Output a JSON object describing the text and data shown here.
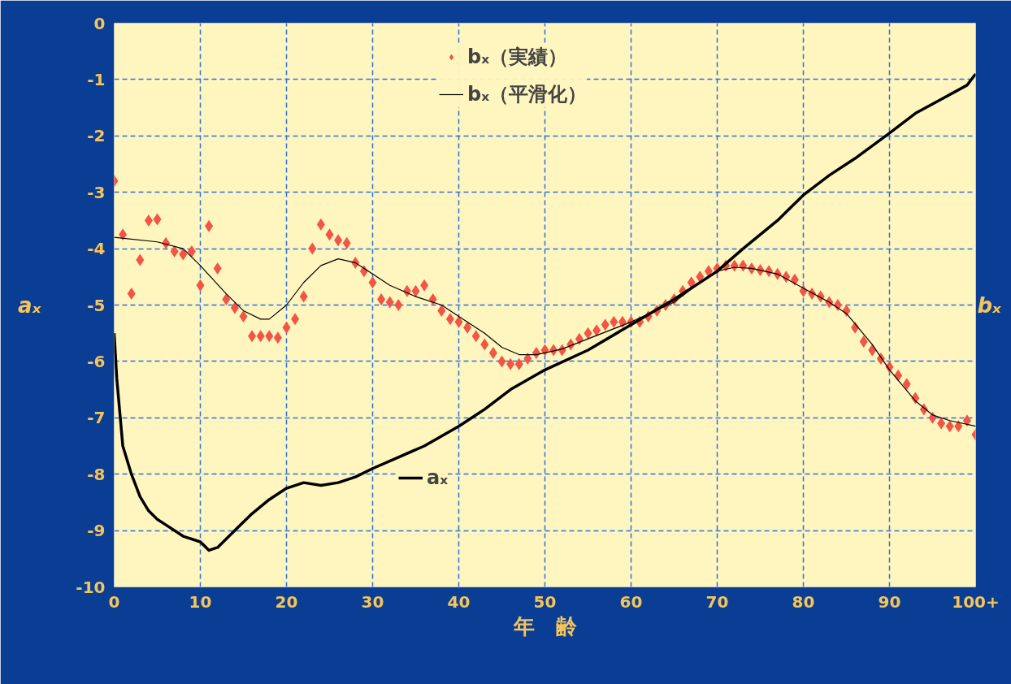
{
  "chart_data": {
    "type": "line",
    "xlabel": "年　齢",
    "ylabel": "aₓ",
    "y2label": "bₓ",
    "xlim": [
      0,
      100
    ],
    "xticks": [
      0,
      10,
      20,
      30,
      40,
      50,
      60,
      70,
      80,
      90,
      {
        "value": 100,
        "label": "100+"
      }
    ],
    "ylim": [
      -10,
      0
    ],
    "yticks": [
      0,
      -1,
      -2,
      -3,
      -4,
      -5,
      -6,
      -7,
      -8,
      -9,
      -10
    ],
    "grid": true,
    "legend": "top",
    "series": [
      {
        "name": "bₓ（実績）",
        "type": "scatter",
        "marker": "diamond",
        "color": "#f25545",
        "x": [
          0,
          1,
          2,
          3,
          4,
          5,
          6,
          7,
          8,
          9,
          10,
          11,
          12,
          13,
          14,
          15,
          16,
          17,
          18,
          19,
          20,
          21,
          22,
          23,
          24,
          25,
          26,
          27,
          28,
          29,
          30,
          31,
          32,
          33,
          34,
          35,
          36,
          37,
          38,
          39,
          40,
          41,
          42,
          43,
          44,
          45,
          46,
          47,
          48,
          49,
          50,
          51,
          52,
          53,
          54,
          55,
          56,
          57,
          58,
          59,
          60,
          61,
          62,
          63,
          64,
          65,
          66,
          67,
          68,
          69,
          70,
          71,
          72,
          73,
          74,
          75,
          76,
          77,
          78,
          79,
          80,
          81,
          82,
          83,
          84,
          85,
          86,
          87,
          88,
          89,
          90,
          91,
          92,
          93,
          94,
          95,
          96,
          97,
          98,
          99,
          100
        ],
        "values": [
          -2.8,
          -3.75,
          -4.8,
          -4.2,
          -3.5,
          -3.48,
          -3.9,
          -4.05,
          -4.1,
          -4.05,
          -4.65,
          -3.6,
          -4.35,
          -4.9,
          -5.05,
          -5.2,
          -5.55,
          -5.55,
          -5.55,
          -5.58,
          -5.4,
          -5.25,
          -4.85,
          -4.0,
          -3.57,
          -3.75,
          -3.85,
          -3.9,
          -4.25,
          -4.4,
          -4.6,
          -4.9,
          -4.95,
          -5.0,
          -4.75,
          -4.75,
          -4.65,
          -4.9,
          -5.1,
          -5.25,
          -5.3,
          -5.4,
          -5.55,
          -5.7,
          -5.85,
          -6.0,
          -6.05,
          -6.05,
          -5.95,
          -5.85,
          -5.8,
          -5.8,
          -5.8,
          -5.7,
          -5.6,
          -5.5,
          -5.45,
          -5.35,
          -5.3,
          -5.3,
          -5.3,
          -5.3,
          -5.2,
          -5.1,
          -5.0,
          -4.9,
          -4.75,
          -4.6,
          -4.5,
          -4.4,
          -4.35,
          -4.3,
          -4.3,
          -4.3,
          -4.35,
          -4.38,
          -4.4,
          -4.45,
          -4.5,
          -4.55,
          -4.75,
          -4.8,
          -4.85,
          -4.95,
          -5.0,
          -5.1,
          -5.4,
          -5.65,
          -5.8,
          -5.95,
          -6.1,
          -6.25,
          -6.4,
          -6.65,
          -6.85,
          -7.0,
          -7.1,
          -7.15,
          -7.15,
          -7.05,
          -7.3
        ]
      },
      {
        "name": "bₓ（平滑化）",
        "type": "line",
        "color": "#000000",
        "x": [
          0,
          5,
          8,
          10,
          13,
          15,
          17,
          18,
          20,
          22,
          24,
          26,
          28,
          30,
          32,
          35,
          38,
          40,
          43,
          45,
          47,
          49,
          52,
          55,
          60,
          65,
          68,
          70,
          72,
          74,
          77,
          80,
          83,
          85,
          88,
          90,
          93,
          95,
          97,
          100
        ],
        "values": [
          -3.8,
          -3.88,
          -4.0,
          -4.3,
          -4.8,
          -5.1,
          -5.25,
          -5.25,
          -5.0,
          -4.6,
          -4.3,
          -4.18,
          -4.25,
          -4.45,
          -4.65,
          -4.85,
          -5.0,
          -5.2,
          -5.5,
          -5.75,
          -5.88,
          -5.88,
          -5.78,
          -5.6,
          -5.3,
          -4.95,
          -4.6,
          -4.4,
          -4.33,
          -4.35,
          -4.45,
          -4.7,
          -4.95,
          -5.15,
          -5.7,
          -6.15,
          -6.7,
          -6.95,
          -7.05,
          -7.15
        ]
      },
      {
        "name": "aₓ",
        "type": "line",
        "color": "#000000",
        "x": [
          0,
          0.3,
          1,
          2,
          3,
          4,
          5,
          6,
          8,
          10,
          11,
          12,
          14,
          16,
          18,
          20,
          22,
          24,
          26,
          28,
          30,
          33,
          36,
          40,
          43,
          46,
          50,
          55,
          60,
          65,
          70,
          73,
          77,
          80,
          83,
          86,
          90,
          93,
          96,
          99,
          100
        ],
        "values": [
          -5.5,
          -6.3,
          -7.5,
          -8.0,
          -8.4,
          -8.65,
          -8.8,
          -8.9,
          -9.1,
          -9.2,
          -9.35,
          -9.3,
          -9.0,
          -8.7,
          -8.45,
          -8.25,
          -8.15,
          -8.2,
          -8.15,
          -8.05,
          -7.9,
          -7.7,
          -7.5,
          -7.15,
          -6.85,
          -6.5,
          -6.15,
          -5.8,
          -5.35,
          -4.9,
          -4.4,
          -4.0,
          -3.5,
          -3.05,
          -2.7,
          -2.4,
          -1.95,
          -1.6,
          -1.35,
          -1.1,
          -0.9
        ]
      }
    ]
  }
}
